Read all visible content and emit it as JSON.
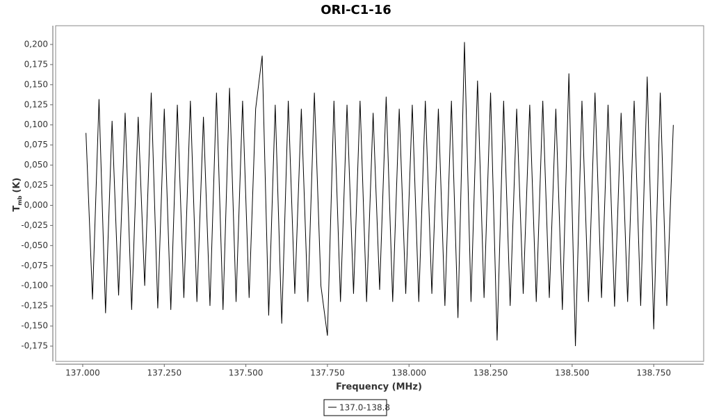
{
  "chart_data": {
    "type": "line",
    "title": "ORI-C1-16",
    "x_label": "Frequency (MHz)",
    "y_label": {
      "main": "T",
      "sub": "mb",
      "unit": "(K)"
    },
    "xlim": [
      136.917,
      138.903
    ],
    "ylim": [
      -0.194,
      0.2233
    ],
    "xticks": [
      {
        "value": 137.0,
        "label": "137.000"
      },
      {
        "value": 137.25,
        "label": "137.250"
      },
      {
        "value": 137.5,
        "label": "137.500"
      },
      {
        "value": 137.75,
        "label": "137.750"
      },
      {
        "value": 138.0,
        "label": "138.000"
      },
      {
        "value": 138.25,
        "label": "138.250"
      },
      {
        "value": 138.5,
        "label": "138.500"
      },
      {
        "value": 138.75,
        "label": "138.750"
      }
    ],
    "yticks": [
      {
        "value": -0.175,
        "label": "-0,175"
      },
      {
        "value": -0.15,
        "label": "-0,150"
      },
      {
        "value": -0.125,
        "label": "-0,125"
      },
      {
        "value": -0.1,
        "label": "-0,100"
      },
      {
        "value": -0.075,
        "label": "-0,075"
      },
      {
        "value": -0.05,
        "label": "-0,050"
      },
      {
        "value": -0.025,
        "label": "-0,025"
      },
      {
        "value": 0,
        "label": "0,000"
      },
      {
        "value": 0.025,
        "label": "0,025"
      },
      {
        "value": 0.05,
        "label": "0,050"
      },
      {
        "value": 0.075,
        "label": "0,075"
      },
      {
        "value": 0.1,
        "label": "0,100"
      },
      {
        "value": 0.125,
        "label": "0,125"
      },
      {
        "value": 0.15,
        "label": "0,150"
      },
      {
        "value": 0.175,
        "label": "0,175"
      },
      {
        "value": 0.2,
        "label": "0,200"
      }
    ],
    "x": [
      137.01,
      137.03,
      137.05,
      137.07,
      137.09,
      137.11,
      137.13,
      137.15,
      137.17,
      137.19,
      137.21,
      137.23,
      137.25,
      137.27,
      137.29,
      137.31,
      137.33,
      137.35,
      137.37,
      137.39,
      137.41,
      137.43,
      137.45,
      137.47,
      137.49,
      137.51,
      137.53,
      137.55,
      137.57,
      137.59,
      137.61,
      137.63,
      137.65,
      137.67,
      137.69,
      137.71,
      137.73,
      137.75,
      137.77,
      137.79,
      137.81,
      137.83,
      137.85,
      137.87,
      137.89,
      137.91,
      137.93,
      137.95,
      137.97,
      137.99,
      138.01,
      138.03,
      138.05,
      138.07,
      138.09,
      138.11,
      138.13,
      138.15,
      138.17,
      138.19,
      138.21,
      138.23,
      138.25,
      138.27,
      138.29,
      138.31,
      138.33,
      138.35,
      138.37,
      138.39,
      138.41,
      138.43,
      138.45,
      138.47,
      138.49,
      138.51,
      138.53,
      138.55,
      138.57,
      138.59,
      138.61,
      138.63,
      138.65,
      138.67,
      138.69,
      138.71,
      138.73,
      138.75,
      138.77,
      138.79,
      138.81
    ],
    "series": [
      {
        "name": "137.0-138.8",
        "color": "#000000",
        "values": [
          0.09,
          -0.117,
          0.132,
          -0.134,
          0.105,
          -0.112,
          0.115,
          -0.13,
          0.11,
          -0.1,
          0.14,
          -0.128,
          0.12,
          -0.13,
          0.125,
          -0.115,
          0.13,
          -0.12,
          0.11,
          -0.125,
          0.14,
          -0.13,
          0.146,
          -0.12,
          0.13,
          -0.115,
          0.12,
          0.186,
          -0.137,
          0.125,
          -0.147,
          0.13,
          -0.11,
          0.12,
          -0.12,
          0.14,
          -0.1,
          -0.162,
          0.13,
          -0.12,
          0.125,
          -0.11,
          0.13,
          -0.12,
          0.115,
          -0.105,
          0.135,
          -0.12,
          0.12,
          -0.11,
          0.125,
          -0.12,
          0.13,
          -0.11,
          0.12,
          -0.125,
          0.13,
          -0.14,
          0.203,
          -0.12,
          0.155,
          -0.115,
          0.14,
          -0.168,
          0.13,
          -0.125,
          0.12,
          -0.11,
          0.125,
          -0.12,
          0.13,
          -0.115,
          0.12,
          -0.13,
          0.164,
          -0.175,
          0.13,
          -0.12,
          0.14,
          -0.115,
          0.125,
          -0.126,
          0.115,
          -0.12,
          0.13,
          -0.125,
          0.16,
          -0.154,
          0.14,
          -0.125,
          0.1
        ]
      }
    ]
  }
}
